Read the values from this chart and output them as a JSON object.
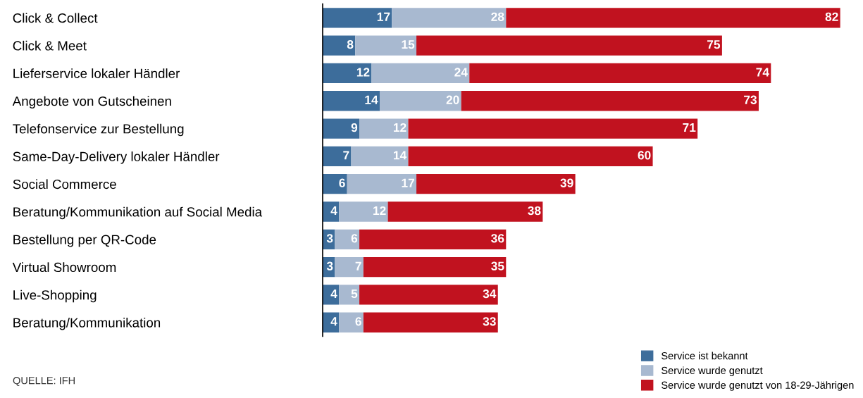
{
  "chart_data": {
    "type": "bar",
    "orientation": "horizontal",
    "stacked": true,
    "data_labels": true,
    "legend": "bottom right",
    "grid": false,
    "categories": [
      "Click & Collect",
      "Click & Meet",
      "Lieferservice lokaler Händler",
      "Angebote von Gutscheinen",
      "Telefonservice zur Bestellung",
      "Same-Day-Delivery lokaler Händler",
      "Social Commerce",
      "Beratung/Kommunikation auf Social Media",
      "Bestellung per QR-Code",
      "Virtual Showroom",
      "Live-Shopping",
      "Beratung/Kommunikation"
    ],
    "series": [
      {
        "name": "Service ist bekannt",
        "color": "#3d6d9b",
        "values": [
          17,
          8,
          12,
          14,
          9,
          7,
          6,
          4,
          3,
          3,
          4,
          4
        ]
      },
      {
        "name": "Service wurde genutzt",
        "color": "#a8b9d0",
        "values": [
          28,
          15,
          24,
          20,
          12,
          14,
          17,
          12,
          6,
          7,
          5,
          6
        ]
      },
      {
        "name": "Service wurde genutzt von 18-29-Jährigen",
        "color": "#c1121f",
        "values": [
          82,
          75,
          74,
          73,
          71,
          60,
          39,
          38,
          36,
          35,
          34,
          33
        ]
      }
    ],
    "annotations": [
      "QUELLE: IFH"
    ]
  }
}
